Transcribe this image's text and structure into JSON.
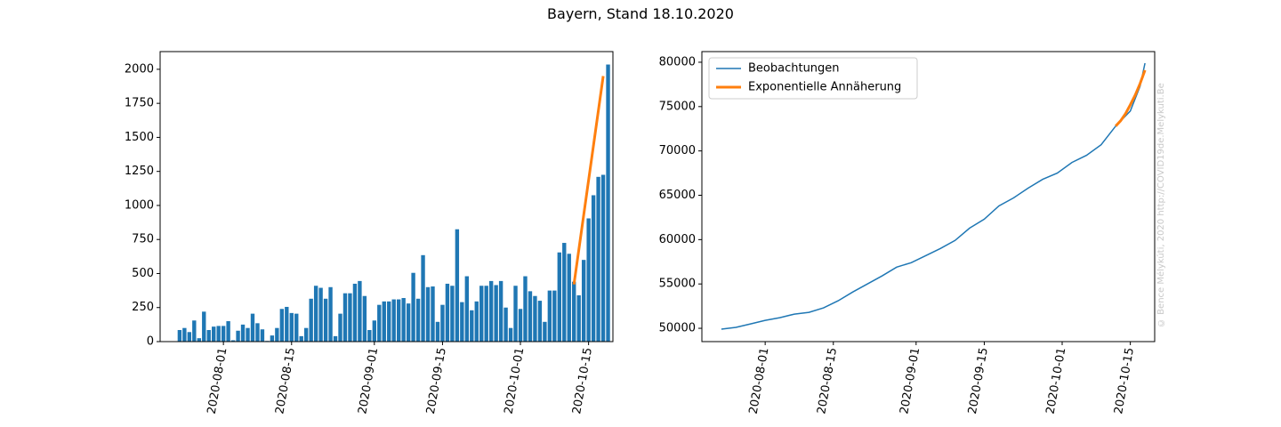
{
  "title": "Bayern, Stand 18.10.2020",
  "watermark": "© Bence Mélykúti, 2020  http://COVID19de.Melykuti.Be",
  "colors": {
    "observations": "#1f77b4",
    "fit": "#ff7f0e",
    "axis": "#000000"
  },
  "chart_data": [
    {
      "type": "bar",
      "title": "",
      "xlabel": "",
      "ylabel": "",
      "ylim": [
        0,
        2130
      ],
      "xlim": [
        "2020-07-19",
        "2020-10-20"
      ],
      "yticks": [
        0,
        250,
        500,
        750,
        1000,
        1250,
        1500,
        1750,
        2000
      ],
      "xticks": [
        "2020-08-01",
        "2020-08-15",
        "2020-09-01",
        "2020-09-15",
        "2020-10-01",
        "2020-10-15"
      ],
      "start_date": "2020-07-23",
      "series": [
        {
          "type": "bar",
          "values": [
            85,
            100,
            70,
            155,
            25,
            220,
            85,
            110,
            115,
            115,
            150,
            10,
            80,
            125,
            100,
            205,
            135,
            90,
            5,
            45,
            100,
            240,
            255,
            210,
            205,
            40,
            100,
            315,
            410,
            395,
            315,
            400,
            40,
            205,
            355,
            355,
            425,
            445,
            335,
            85,
            155,
            270,
            295,
            295,
            310,
            310,
            320,
            280,
            505,
            315,
            635,
            400,
            405,
            145,
            270,
            425,
            410,
            825,
            290,
            480,
            230,
            295,
            410,
            410,
            445,
            415,
            445,
            250,
            100,
            410,
            240,
            480,
            370,
            335,
            300,
            145,
            375,
            375,
            655,
            725,
            645,
            440,
            340,
            600,
            905,
            1075,
            1210,
            1225,
            2035
          ]
        },
        {
          "type": "line",
          "dates": [
            "2020-10-12",
            "2020-10-18"
          ],
          "values": [
            420,
            1950
          ]
        }
      ]
    },
    {
      "type": "line",
      "title": "",
      "xlabel": "",
      "ylabel": "",
      "ylim": [
        48500,
        81200
      ],
      "xlim": [
        "2020-07-19",
        "2020-10-20"
      ],
      "yticks": [
        50000,
        55000,
        60000,
        65000,
        70000,
        75000,
        80000
      ],
      "xticks": [
        "2020-08-01",
        "2020-08-15",
        "2020-09-01",
        "2020-09-15",
        "2020-10-01",
        "2020-10-15"
      ],
      "legend": {
        "position": "top-left",
        "entries": [
          "Beobachtungen",
          "Exponentielle Annäherung"
        ]
      },
      "series": [
        {
          "name": "Beobachtungen",
          "dates": [
            "2020-07-23",
            "2020-07-26",
            "2020-07-29",
            "2020-08-01",
            "2020-08-04",
            "2020-08-07",
            "2020-08-10",
            "2020-08-13",
            "2020-08-16",
            "2020-08-19",
            "2020-08-22",
            "2020-08-25",
            "2020-08-28",
            "2020-08-31",
            "2020-09-03",
            "2020-09-06",
            "2020-09-09",
            "2020-09-12",
            "2020-09-15",
            "2020-09-18",
            "2020-09-21",
            "2020-09-24",
            "2020-09-27",
            "2020-09-30",
            "2020-10-03",
            "2020-10-06",
            "2020-10-09",
            "2020-10-12",
            "2020-10-15",
            "2020-10-17",
            "2020-10-18"
          ],
          "values": [
            49900,
            50100,
            50500,
            50900,
            51200,
            51600,
            51800,
            52300,
            53100,
            54100,
            55000,
            55900,
            56900,
            57400,
            58200,
            59000,
            59900,
            61300,
            62300,
            63800,
            64700,
            65800,
            66800,
            67500,
            68700,
            69500,
            70700,
            72800,
            74500,
            77300,
            79900
          ]
        },
        {
          "name": "Exponentielle Annäherung",
          "dates": [
            "2020-10-12",
            "2020-10-13",
            "2020-10-14",
            "2020-10-15",
            "2020-10-16",
            "2020-10-17",
            "2020-10-18"
          ],
          "values": [
            72800,
            73400,
            74200,
            75200,
            76300,
            77600,
            79100
          ]
        }
      ]
    }
  ]
}
